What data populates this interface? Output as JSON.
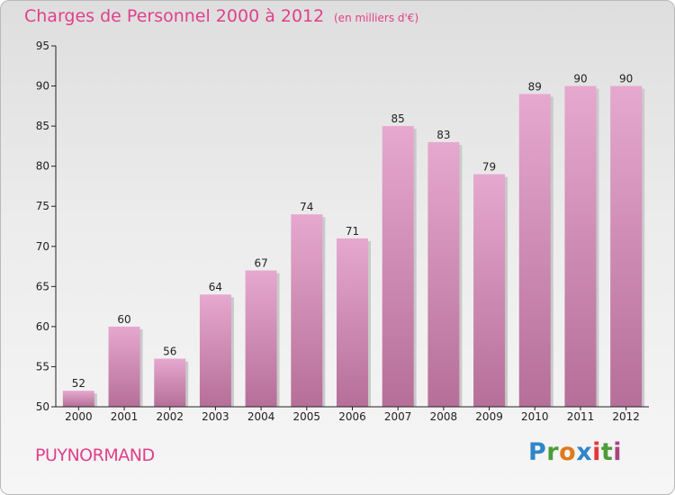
{
  "header": {
    "title": "Charges de Personnel 2000 à 2012",
    "subtitle": "(en milliers d'€)"
  },
  "footer": {
    "town": "PUYNORMAND",
    "logo_letters": [
      "P",
      "r",
      "o",
      "x",
      "i",
      "t",
      "i"
    ]
  },
  "colors": {
    "title": "#e0408a",
    "bar_top": "#e6a8cf",
    "bar_bottom": "#b56f98",
    "axis": "#222222"
  },
  "chart_data": {
    "type": "bar",
    "title": "Charges de Personnel 2000 à 2012",
    "subtitle": "(en milliers d'€)",
    "categories": [
      "2000",
      "2001",
      "2002",
      "2003",
      "2004",
      "2005",
      "2006",
      "2007",
      "2008",
      "2009",
      "2010",
      "2011",
      "2012"
    ],
    "values": [
      52,
      60,
      56,
      64,
      67,
      74,
      71,
      85,
      83,
      79,
      89,
      90,
      90
    ],
    "ylim": [
      50,
      95
    ],
    "yticks": [
      50,
      55,
      60,
      65,
      70,
      75,
      80,
      85,
      90,
      95
    ],
    "grid": false,
    "data_labels": true
  }
}
